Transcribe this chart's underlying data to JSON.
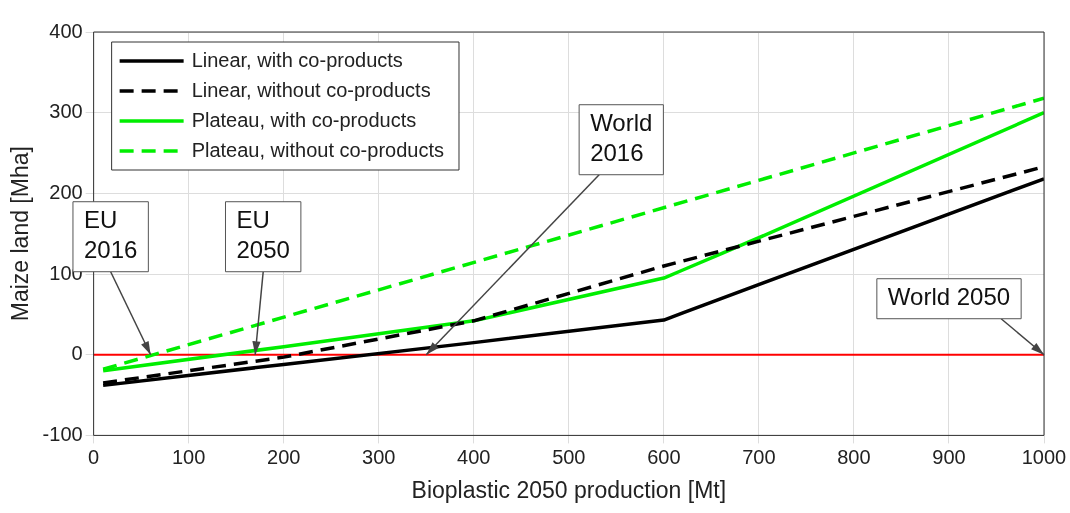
{
  "chart_data": {
    "type": "line",
    "xlabel": "Bioplastic 2050 production [Mt]",
    "ylabel": "Maize land [Mha]",
    "xlim": [
      0,
      1000
    ],
    "xticks": [
      0,
      100,
      200,
      300,
      400,
      500,
      600,
      700,
      800,
      900,
      1000
    ],
    "ylim": [
      -100,
      400
    ],
    "yticks": [
      -100,
      0,
      100,
      200,
      300,
      400
    ],
    "grid": true,
    "legend": "top left",
    "marker": "none",
    "series": [
      {
        "name": "Linear, with co-products",
        "color": "#000000",
        "line_style": "solid",
        "x": [
          10,
          200,
          400,
          600,
          620,
          1000
        ],
        "values": [
          -38,
          -12,
          15,
          43,
          52,
          218
        ]
      },
      {
        "name": "Linear, without co-products",
        "color": "#000000",
        "line_style": "dashed",
        "x": [
          10,
          200,
          400,
          600,
          1000
        ],
        "values": [
          -35,
          -3,
          42,
          110,
          233
        ]
      },
      {
        "name": "Plateau, with co-products",
        "color": "#00ee00",
        "line_style": "solid",
        "x": [
          10,
          200,
          400,
          600,
          620,
          700,
          1000
        ],
        "values": [
          -20,
          10,
          42,
          95,
          105,
          145,
          300
        ]
      },
      {
        "name": "Plateau, without co-products",
        "color": "#00ee00",
        "line_style": "dashed",
        "x": [
          10,
          1000
        ],
        "values": [
          -18,
          318
        ]
      }
    ],
    "ref_lines": [
      {
        "axis": "y",
        "value": 0,
        "color": "#ff0000"
      }
    ],
    "annotations": [
      {
        "text": "EU\n2016",
        "x": 60,
        "y": 0
      },
      {
        "text": "EU\n2050",
        "x": 170,
        "y": 0
      },
      {
        "text": "World\n2016",
        "x": 350,
        "y": 0
      },
      {
        "text": "World 2050",
        "x": 1000,
        "y": 0
      }
    ]
  }
}
